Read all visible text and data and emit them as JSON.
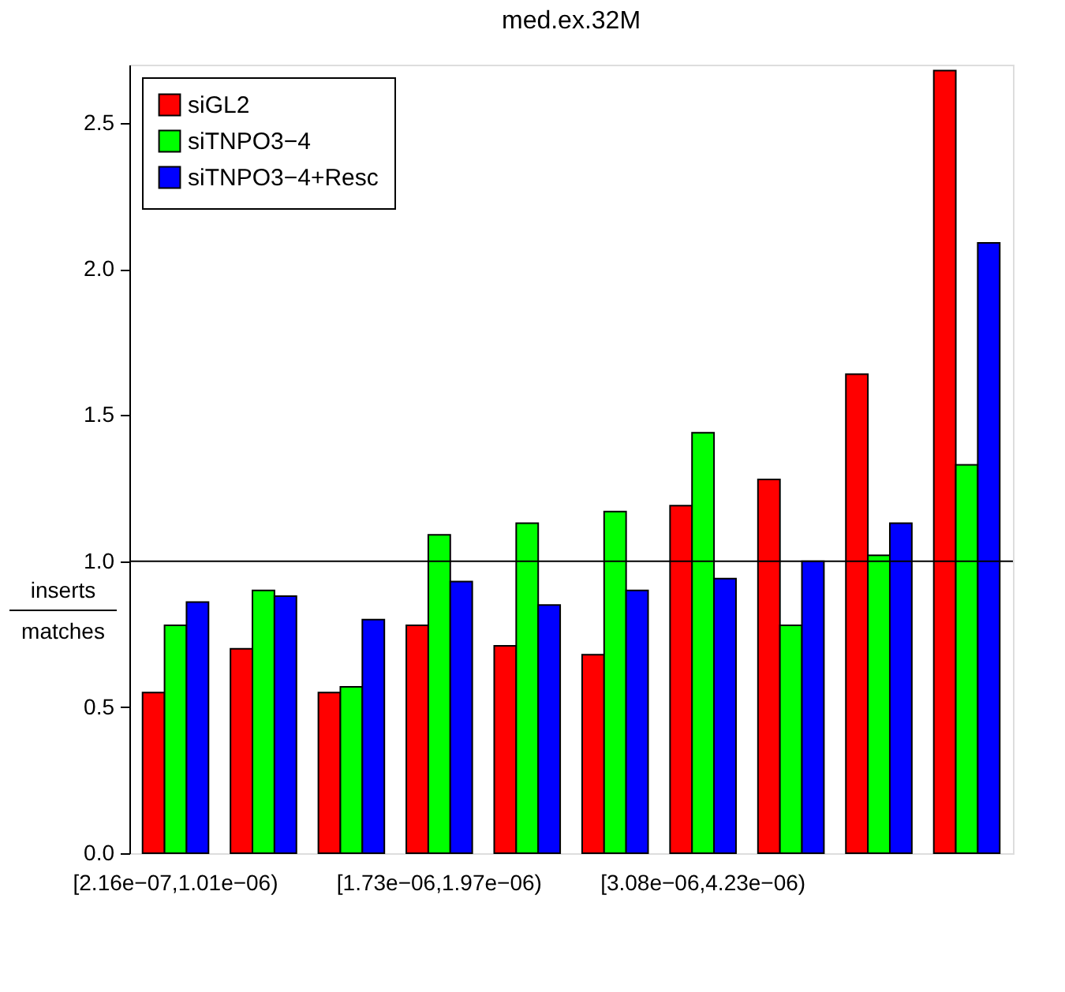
{
  "chart_data": {
    "type": "bar",
    "title": "med.ex.32M",
    "ylabel": "inserts\nmatches",
    "categories": [
      "[2.16e−07,1.01e−06)",
      null,
      null,
      "[1.73e−06,1.97e−06)",
      null,
      null,
      "[3.08e−06,4.23e−06)",
      null,
      null,
      null
    ],
    "series": [
      {
        "name": "siGL2",
        "color": "#ff0000",
        "values": [
          0.55,
          0.7,
          0.55,
          0.78,
          0.71,
          0.68,
          1.19,
          1.28,
          1.64,
          2.68
        ]
      },
      {
        "name": "siTNPO3−4",
        "color": "#00ff00",
        "values": [
          0.78,
          0.9,
          0.57,
          1.09,
          1.13,
          1.17,
          1.44,
          0.78,
          1.02,
          1.33
        ]
      },
      {
        "name": "siTNPO3−4+Resc",
        "color": "#0000ff",
        "values": [
          0.86,
          0.88,
          0.8,
          0.93,
          0.85,
          0.9,
          0.94,
          1.0,
          1.13,
          2.09
        ]
      }
    ],
    "ylim": [
      0,
      2.7
    ],
    "yticks": [
      {
        "value": 0,
        "label": "0.0"
      },
      0.5,
      {
        "value": 1,
        "label": "1.0"
      },
      1.5,
      {
        "value": 2,
        "label": "2.0"
      },
      2.5
    ],
    "ref_lines": [
      {
        "axis": "y",
        "value": 1.0,
        "color": "#000000"
      }
    ],
    "legend": "top left",
    "grid": false
  }
}
